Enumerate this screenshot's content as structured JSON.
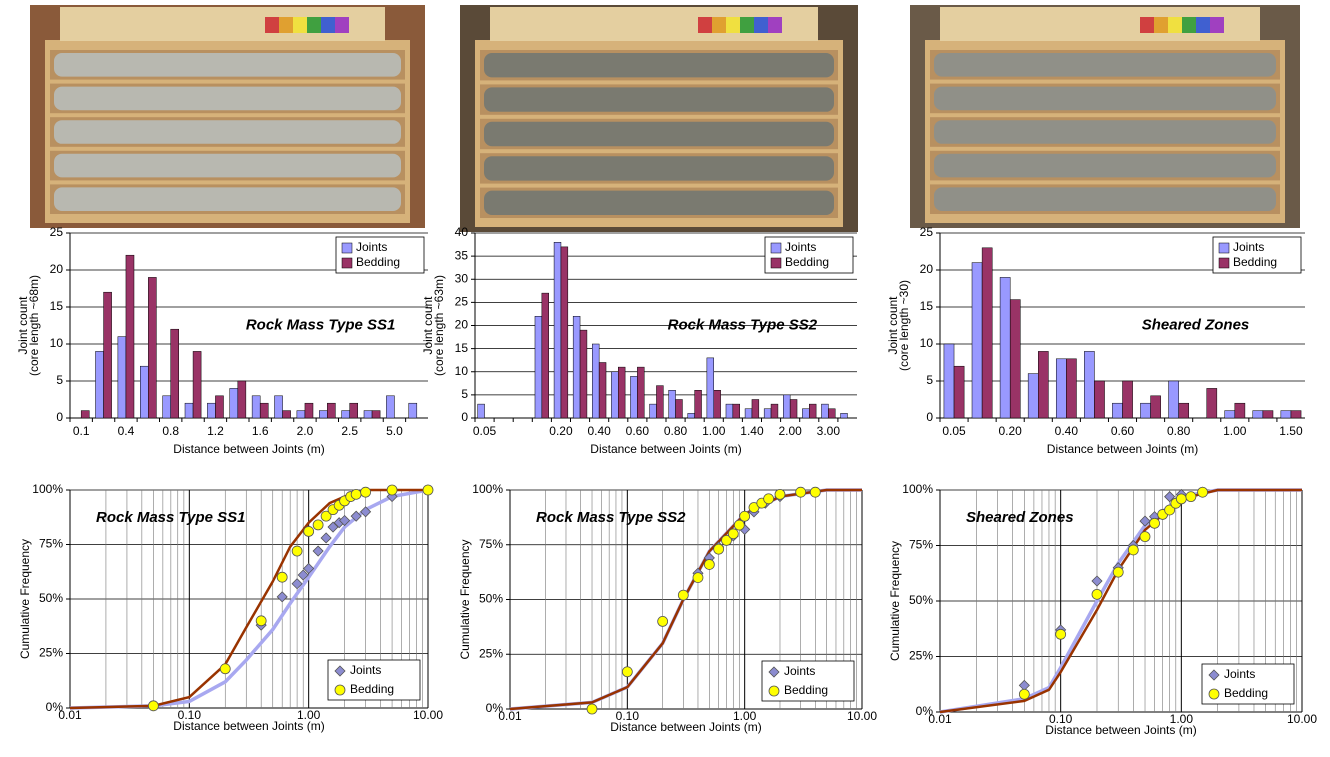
{
  "chart_data": [
    {
      "type": "bar",
      "annotation": "Rock Mass Type SS1",
      "x_label": "Distance between Joints (m)",
      "y_label": "Joint count",
      "y_sublabel": "(core length ~68m)",
      "categories": [
        "0.1",
        null,
        "0.4",
        null,
        "0.8",
        null,
        "1.2",
        null,
        "1.6",
        null,
        "2.0",
        null,
        "2.5",
        null,
        "5.0",
        null
      ],
      "series": [
        {
          "name": "Joints",
          "color": "#9999ff",
          "values": [
            0,
            9,
            11,
            7,
            3,
            2,
            2,
            4,
            3,
            3,
            1,
            1,
            1,
            1,
            3,
            2
          ]
        },
        {
          "name": "Bedding",
          "color": "#993366",
          "values": [
            1,
            17,
            22,
            19,
            12,
            9,
            3,
            5,
            2,
            1,
            2,
            2,
            2,
            1,
            0,
            0
          ]
        }
      ],
      "ylim": [
        0,
        25
      ],
      "yticks": [
        0,
        5,
        10,
        15,
        20,
        25
      ],
      "grid": true,
      "legend": "upper right"
    },
    {
      "type": "bar",
      "annotation": "Rock Mass Type SS2",
      "x_label": "Distance between Joints (m)",
      "y_label": "Joint count",
      "y_sublabel": "(core length ~63m)",
      "categories": [
        "0.05",
        null,
        null,
        null,
        "0.20",
        null,
        "0.40",
        null,
        "0.60",
        null,
        "0.80",
        null,
        "1.00",
        null,
        "1.40",
        null,
        "2.00",
        null,
        "3.00",
        null
      ],
      "series": [
        {
          "name": "Joints",
          "color": "#9999ff",
          "values": [
            3,
            0,
            0,
            22,
            38,
            22,
            16,
            10,
            9,
            3,
            6,
            1,
            13,
            3,
            2,
            2,
            5,
            2,
            3,
            1
          ]
        },
        {
          "name": "Bedding",
          "color": "#993366",
          "values": [
            0,
            0,
            0,
            27,
            37,
            19,
            12,
            11,
            11,
            7,
            4,
            6,
            6,
            3,
            4,
            3,
            4,
            3,
            2,
            0
          ]
        }
      ],
      "ylim": [
        0,
        40
      ],
      "yticks": [
        0,
        5,
        10,
        15,
        20,
        25,
        30,
        35,
        40
      ],
      "grid": true,
      "legend": "upper right"
    },
    {
      "type": "bar",
      "annotation": "Sheared Zones",
      "x_label": "Distance between Joints (m)",
      "y_label": "Joint count",
      "y_sublabel": "(core length ~30)",
      "categories": [
        "0.05",
        null,
        "0.20",
        null,
        "0.40",
        null,
        "0.60",
        null,
        "0.80",
        null,
        "1.00",
        null,
        "1.50"
      ],
      "series": [
        {
          "name": "Joints",
          "color": "#9999ff",
          "values": [
            10,
            21,
            19,
            6,
            8,
            9,
            2,
            2,
            5,
            0,
            1,
            1,
            1
          ]
        },
        {
          "name": "Bedding",
          "color": "#993366",
          "values": [
            7,
            23,
            16,
            9,
            8,
            5,
            5,
            3,
            2,
            4,
            2,
            1,
            1
          ]
        }
      ],
      "ylim": [
        0,
        25
      ],
      "yticks": [
        0,
        5,
        10,
        15,
        20,
        25
      ],
      "grid": true,
      "legend": "upper right"
    },
    {
      "type": "scatter",
      "annotation": "Rock Mass Type SS1",
      "x_label": "Distance between Joints (m)",
      "y_label": "Cumulative Frequency",
      "xscale": "log",
      "xlim": [
        0.01,
        10
      ],
      "xticks": [
        0.01,
        {
          "value": 0.1,
          "label": "0.10"
        },
        {
          "value": 1,
          "label": "1.00"
        },
        {
          "value": 10,
          "label": "10.00"
        }
      ],
      "minor_xticks": [
        0.02,
        0.03,
        0.04,
        0.05,
        0.06,
        0.07,
        0.08,
        0.09,
        0.2,
        0.3,
        0.4,
        0.5,
        0.6,
        0.7,
        0.8,
        0.9,
        2,
        3,
        4,
        5,
        6,
        7,
        8,
        9
      ],
      "ylim": [
        0,
        100
      ],
      "yticks": [
        {
          "value": 0,
          "label": "0%"
        },
        {
          "value": 25,
          "label": "25%"
        },
        {
          "value": 50,
          "label": "50%"
        },
        {
          "value": 75,
          "label": "75%"
        },
        {
          "value": 100,
          "label": "100%"
        }
      ],
      "grid": true,
      "legend": "lower right",
      "series": [
        {
          "name": "Joints",
          "color": "#8c8cd0",
          "marker": "diamond",
          "x": [
            0.4,
            0.6,
            0.8,
            0.9,
            1.0,
            1.2,
            1.4,
            1.6,
            1.8,
            2.0,
            2.5,
            3.0,
            5.0,
            10
          ],
          "values": [
            38,
            51,
            57,
            61,
            64,
            72,
            78,
            83,
            85,
            86,
            88,
            90,
            97,
            100
          ],
          "fit_color": "#a8a8f0",
          "fit_x": [
            0.01,
            0.05,
            0.1,
            0.2,
            0.3,
            0.5,
            0.7,
            1,
            1.5,
            2,
            3,
            5,
            10
          ],
          "fit_values": [
            0,
            1,
            3,
            12,
            22,
            36,
            48,
            60,
            74,
            83,
            91,
            97,
            100
          ]
        },
        {
          "name": "Bedding",
          "color": "#ffff00",
          "marker": "circle",
          "x": [
            0.05,
            0.2,
            0.4,
            0.6,
            0.8,
            1.0,
            1.2,
            1.4,
            1.6,
            1.8,
            2.0,
            2.25,
            2.5,
            3.0,
            5.0,
            10
          ],
          "values": [
            1,
            18,
            40,
            60,
            72,
            81,
            84,
            88,
            91,
            93,
            95,
            97,
            98,
            99,
            100,
            100
          ],
          "fit_color": "#993300",
          "fit_x": [
            0.01,
            0.05,
            0.1,
            0.2,
            0.3,
            0.5,
            0.7,
            1,
            1.5,
            2,
            3,
            10
          ],
          "fit_values": [
            0,
            1,
            5,
            20,
            37,
            58,
            74,
            85,
            94,
            97,
            100,
            100
          ]
        }
      ]
    },
    {
      "type": "scatter",
      "annotation": "Rock Mass Type SS2",
      "x_label": "Distance between Joints (m)",
      "y_label": "Cumulative Frequency",
      "xscale": "log",
      "xlim": [
        0.01,
        10
      ],
      "xticks": [
        0.01,
        {
          "value": 0.1,
          "label": "0.10"
        },
        {
          "value": 1,
          "label": "1.00"
        },
        {
          "value": 10,
          "label": "10.00"
        }
      ],
      "minor_xticks": [
        0.02,
        0.03,
        0.04,
        0.05,
        0.06,
        0.07,
        0.08,
        0.09,
        0.2,
        0.3,
        0.4,
        0.5,
        0.6,
        0.7,
        0.8,
        0.9,
        2,
        3,
        4,
        5,
        6,
        7,
        8,
        9
      ],
      "ylim": [
        0,
        100
      ],
      "yticks": [
        {
          "value": 0,
          "label": "0%"
        },
        {
          "value": 25,
          "label": "25%"
        },
        {
          "value": 50,
          "label": "50%"
        },
        {
          "value": 75,
          "label": "75%"
        },
        {
          "value": 100,
          "label": "100%"
        }
      ],
      "grid": true,
      "legend": "lower right",
      "series": [
        {
          "name": "Joints",
          "color": "#8c8cd0",
          "marker": "diamond",
          "x": [
            0.4,
            0.5,
            0.6,
            0.8,
            1.0,
            1.2,
            1.5,
            2.0
          ],
          "values": [
            62,
            69,
            74,
            79,
            82,
            90,
            94,
            97
          ],
          "fit_color": "#a8a8f0",
          "fit_x": [
            0.01,
            0.05,
            0.1,
            0.2,
            0.3,
            0.5,
            1,
            2,
            5,
            10
          ],
          "fit_values": [
            0,
            3,
            10,
            30,
            50,
            72,
            89,
            97,
            100,
            100
          ]
        },
        {
          "name": "Bedding",
          "color": "#ffff00",
          "marker": "circle",
          "x": [
            0.05,
            0.1,
            0.2,
            0.3,
            0.4,
            0.5,
            0.6,
            0.7,
            0.8,
            0.9,
            1.0,
            1.2,
            1.4,
            1.6,
            2.0,
            3.0,
            4.0
          ],
          "values": [
            0,
            17,
            40,
            52,
            60,
            66,
            73,
            77,
            80,
            84,
            88,
            92,
            94,
            96,
            98,
            99,
            99
          ],
          "fit_color": "#993300",
          "fit_x": [
            0.01,
            0.05,
            0.1,
            0.2,
            0.3,
            0.5,
            1,
            2,
            5,
            10
          ],
          "fit_values": [
            0,
            3,
            10,
            30,
            50,
            72,
            89,
            97,
            100,
            100
          ]
        }
      ]
    },
    {
      "type": "scatter",
      "annotation": "Sheared Zones",
      "x_label": "Distance between Joints (m)",
      "y_label": "Cumulative Frequency",
      "xscale": "log",
      "xlim": [
        0.01,
        10
      ],
      "xticks": [
        0.01,
        {
          "value": 0.1,
          "label": "0.10"
        },
        {
          "value": 1,
          "label": "1.00"
        },
        {
          "value": 10,
          "label": "10.00"
        }
      ],
      "minor_xticks": [
        0.02,
        0.03,
        0.04,
        0.05,
        0.06,
        0.07,
        0.08,
        0.09,
        0.2,
        0.3,
        0.4,
        0.5,
        0.6,
        0.7,
        0.8,
        0.9,
        2,
        3,
        4,
        5,
        6,
        7,
        8,
        9
      ],
      "ylim": [
        0,
        100
      ],
      "yticks": [
        {
          "value": 0,
          "label": "0%"
        },
        {
          "value": 25,
          "label": "25%"
        },
        {
          "value": 50,
          "label": "50%"
        },
        {
          "value": 75,
          "label": "75%"
        },
        {
          "value": 100,
          "label": "100%"
        }
      ],
      "grid": true,
      "legend": "lower right",
      "series": [
        {
          "name": "Joints",
          "color": "#8c8cd0",
          "marker": "diamond",
          "x": [
            0.05,
            0.1,
            0.2,
            0.3,
            0.4,
            0.5,
            0.6,
            0.8,
            1.0,
            1.5
          ],
          "values": [
            12,
            37,
            59,
            65,
            75,
            86,
            88,
            97,
            98,
            99
          ],
          "fit_color": "#a8a8f0",
          "fit_x": [
            0.01,
            0.05,
            0.08,
            0.1,
            0.2,
            0.3,
            0.5,
            1,
            2,
            10
          ],
          "fit_values": [
            0,
            6,
            11,
            20,
            50,
            67,
            84,
            97,
            100,
            100
          ]
        },
        {
          "name": "Bedding",
          "color": "#ffff00",
          "marker": "circle",
          "x": [
            0.05,
            0.1,
            0.2,
            0.3,
            0.4,
            0.5,
            0.6,
            0.7,
            0.8,
            0.9,
            1.0,
            1.2,
            1.5
          ],
          "values": [
            8,
            35,
            53,
            63,
            73,
            79,
            85,
            89,
            91,
            94,
            96,
            97,
            99
          ],
          "fit_color": "#993300",
          "fit_x": [
            0.01,
            0.05,
            0.08,
            0.1,
            0.2,
            0.3,
            0.5,
            1,
            2,
            10
          ],
          "fit_values": [
            0,
            5,
            10,
            18,
            46,
            64,
            82,
            96,
            100,
            100
          ]
        }
      ]
    }
  ]
}
